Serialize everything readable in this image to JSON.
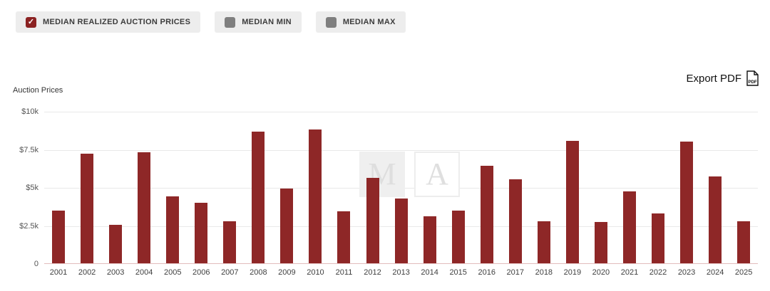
{
  "controls": {
    "series_toggles": [
      {
        "label": "MEDIAN REALIZED AUCTION PRICES",
        "checked": true
      },
      {
        "label": "MEDIAN MIN",
        "checked": false
      },
      {
        "label": "MEDIAN MAX",
        "checked": false
      }
    ],
    "export_label": "Export PDF",
    "export_icon_text": "PDF"
  },
  "watermark": {
    "letters": [
      "M",
      "A"
    ]
  },
  "chart_data": {
    "type": "bar",
    "title": "Auction Prices",
    "ylabel": "Auction Prices",
    "xlabel": "",
    "ylim": [
      0,
      10000
    ],
    "grid": true,
    "legend_position": "none",
    "bar_color": "#8e2727",
    "yticks": [
      {
        "label": "$10k",
        "value": 10000
      },
      {
        "label": "$7.5k",
        "value": 7500
      },
      {
        "label": "$5k",
        "value": 5000
      },
      {
        "label": "$2.5k",
        "value": 2500
      },
      {
        "label": "0",
        "value": 0
      }
    ],
    "categories": [
      "2001",
      "2002",
      "2003",
      "2004",
      "2005",
      "2006",
      "2007",
      "2008",
      "2009",
      "2010",
      "2011",
      "2012",
      "2013",
      "2014",
      "2015",
      "2016",
      "2017",
      "2018",
      "2019",
      "2020",
      "2021",
      "2022",
      "2023",
      "2024",
      "2025"
    ],
    "values": [
      3500,
      7250,
      2550,
      7350,
      4450,
      4000,
      2800,
      8700,
      4950,
      8850,
      3450,
      5650,
      4300,
      3150,
      3500,
      6450,
      5550,
      2800,
      8100,
      2750,
      4750,
      3300,
      8050,
      5750,
      2800
    ],
    "series_name": "Median Realized Auction Prices"
  }
}
